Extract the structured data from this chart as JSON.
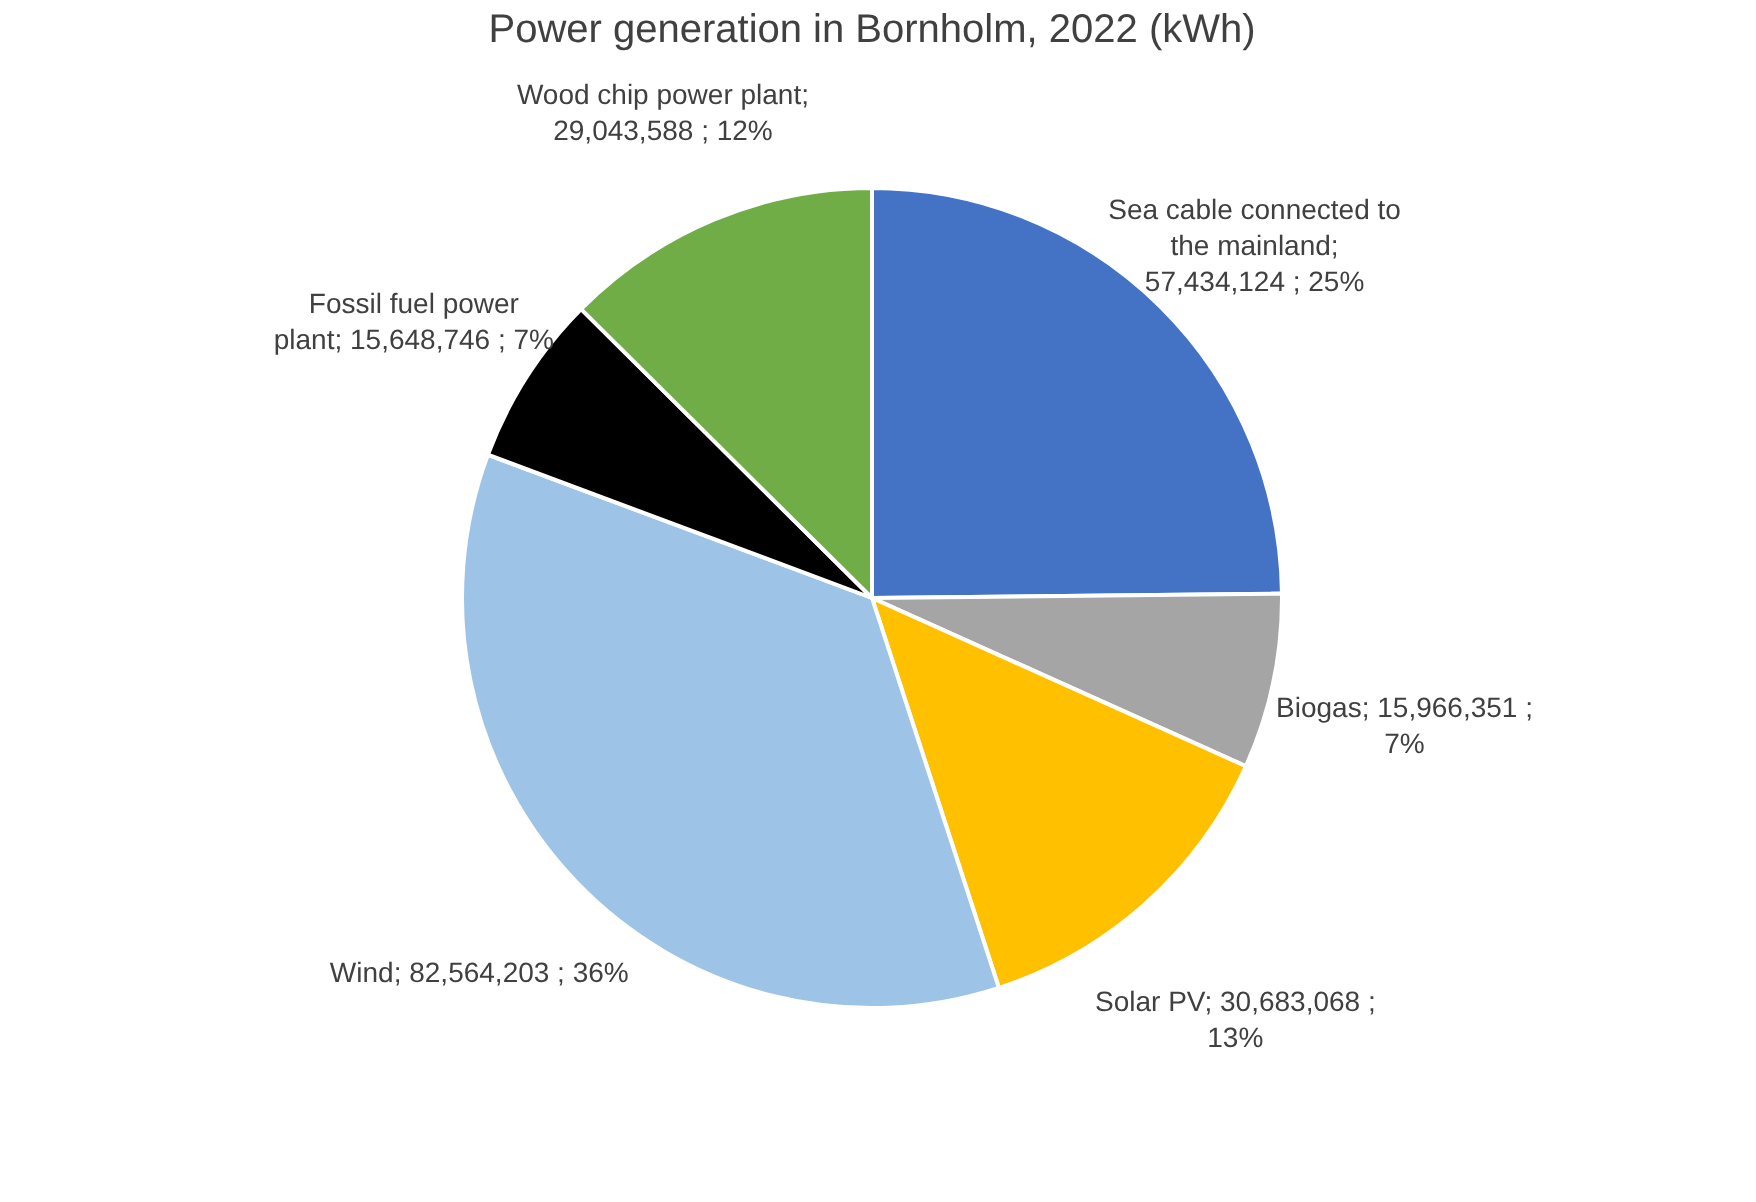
{
  "chart_data": {
    "type": "pie",
    "title": "Power generation in Bornholm, 2022 (kWh)",
    "categories": [
      "Sea cable connected to the mainland",
      "Biogas",
      "Solar PV",
      "Wind",
      "Fossil fuel power plant",
      "Wood chip power plant"
    ],
    "values": [
      57434124,
      15966351,
      30683068,
      82564203,
      15648746,
      29043588
    ],
    "value_labels": [
      "; 57,434,124 ; 25%",
      "; 15,966,351 ; 7%",
      "; 30,683,068 ; 13%",
      "; 82,564,203 ; 36%",
      "; 15,648,746 ; 7%",
      "; 29,043,588 ; 12%"
    ],
    "colors": [
      "#4472c4",
      "#a5a5a5",
      "#ffc000",
      "#9dc3e6",
      "#000000",
      "#70ad47"
    ],
    "legend": false
  }
}
